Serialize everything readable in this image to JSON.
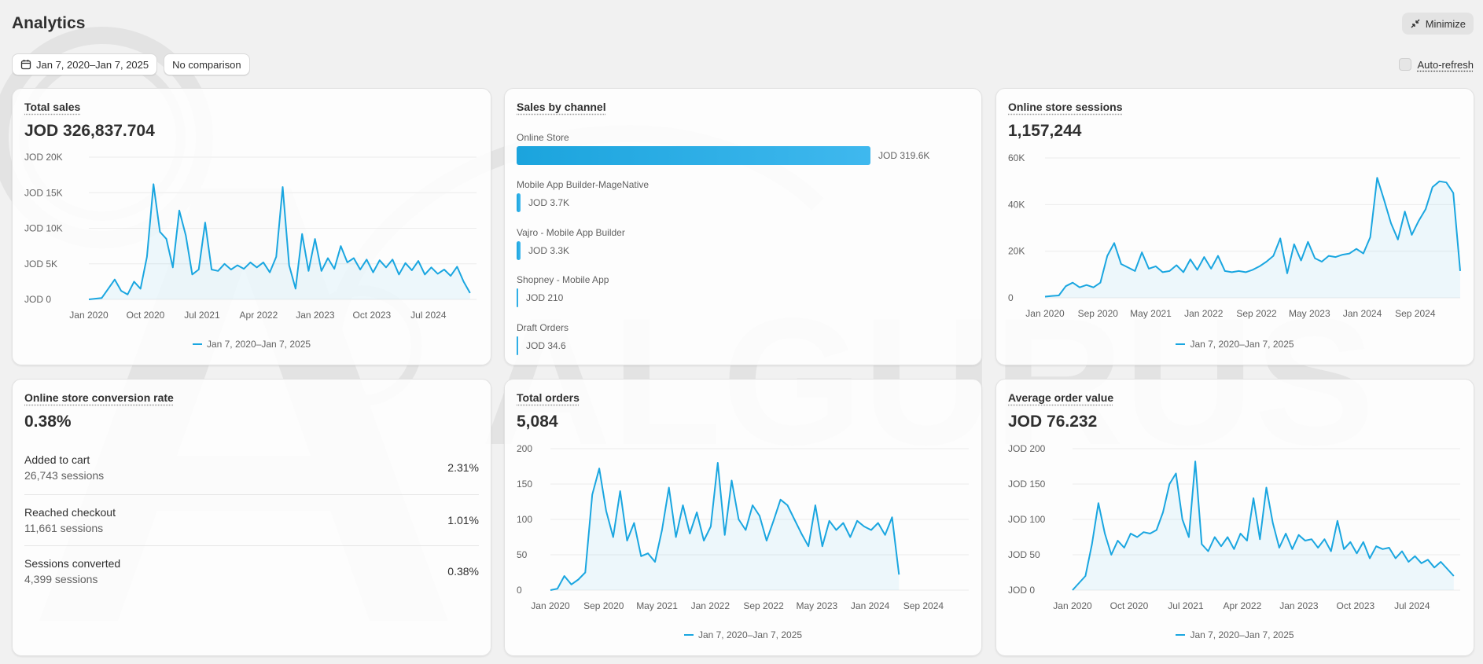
{
  "header": {
    "title": "Analytics",
    "minimize_label": "Minimize"
  },
  "toolbar": {
    "date_range": "Jan 7, 2020–Jan 7, 2025",
    "comparison": "No comparison",
    "auto_refresh_label": "Auto-refresh"
  },
  "colors": {
    "line": "#1aa6e0",
    "accent_bar": "#1ba4dd",
    "background": "#f1f1f1"
  },
  "watermark": {
    "text": "ALGURUS"
  },
  "cards": {
    "total_sales": {
      "title": "Total sales",
      "value": "JOD 326,837.704",
      "legend": "Jan 7, 2020–Jan 7, 2025"
    },
    "sales_by_channel": {
      "title": "Sales by channel",
      "channels": [
        {
          "name": "Online Store",
          "value_label": "JOD 319.6K",
          "value": 319600
        },
        {
          "name": "Mobile App Builder-MageNative",
          "value_label": "JOD 3.7K",
          "value": 3700
        },
        {
          "name": "Vajro - Mobile App Builder",
          "value_label": "JOD 3.3K",
          "value": 3300
        },
        {
          "name": "Shopney - Mobile App",
          "value_label": "JOD 210",
          "value": 210
        },
        {
          "name": "Draft Orders",
          "value_label": "JOD 34.6",
          "value": 34.6
        }
      ]
    },
    "sessions": {
      "title": "Online store sessions",
      "value": "1,157,244",
      "legend": "Jan 7, 2020–Jan 7, 2025"
    },
    "conversion": {
      "title": "Online store conversion rate",
      "value": "0.38%",
      "rows": [
        {
          "label": "Added to cart",
          "sessions": "26,743 sessions",
          "pct": "2.31%"
        },
        {
          "label": "Reached checkout",
          "sessions": "11,661 sessions",
          "pct": "1.01%"
        },
        {
          "label": "Sessions converted",
          "sessions": "4,399 sessions",
          "pct": "0.38%"
        }
      ]
    },
    "total_orders": {
      "title": "Total orders",
      "value": "5,084",
      "legend": "Jan 7, 2020–Jan 7, 2025"
    },
    "aov": {
      "title": "Average order value",
      "value": "JOD 76.232",
      "legend": "Jan 7, 2020–Jan 7, 2025"
    }
  },
  "chart_data": [
    {
      "id": "total_sales",
      "type": "line",
      "grid": true,
      "legend_placement": "bottom-center",
      "series_name": "Jan 7, 2020–Jan 7, 2025",
      "x_tick_labels": [
        "Jan 2020",
        "Oct 2020",
        "Jul 2021",
        "Apr 2022",
        "Jan 2023",
        "Oct 2023",
        "Jul 2024"
      ],
      "y_tick_labels": [
        "JOD 0",
        "JOD 5K",
        "JOD 10K",
        "JOD 15K",
        "JOD 20K"
      ],
      "ylim": [
        0,
        20000
      ],
      "xlim": [
        0,
        60
      ],
      "points": [
        [
          0,
          0
        ],
        [
          2,
          200
        ],
        [
          3,
          1500
        ],
        [
          4,
          2800
        ],
        [
          5,
          1200
        ],
        [
          6,
          700
        ],
        [
          7,
          2500
        ],
        [
          8,
          1500
        ],
        [
          9,
          6000
        ],
        [
          10,
          16200
        ],
        [
          11,
          9500
        ],
        [
          12,
          8500
        ],
        [
          13,
          4500
        ],
        [
          14,
          12500
        ],
        [
          15,
          9000
        ],
        [
          16,
          3500
        ],
        [
          17,
          4200
        ],
        [
          18,
          10800
        ],
        [
          19,
          4200
        ],
        [
          20,
          4000
        ],
        [
          21,
          5000
        ],
        [
          22,
          4200
        ],
        [
          23,
          4800
        ],
        [
          24,
          4300
        ],
        [
          25,
          5200
        ],
        [
          26,
          4500
        ],
        [
          27,
          5200
        ],
        [
          28,
          3800
        ],
        [
          29,
          6000
        ],
        [
          30,
          15800
        ],
        [
          31,
          4800
        ],
        [
          32,
          1500
        ],
        [
          33,
          9200
        ],
        [
          34,
          4000
        ],
        [
          35,
          8500
        ],
        [
          36,
          4000
        ],
        [
          37,
          5800
        ],
        [
          38,
          4300
        ],
        [
          39,
          7500
        ],
        [
          40,
          5200
        ],
        [
          41,
          5800
        ],
        [
          42,
          4200
        ],
        [
          43,
          5600
        ],
        [
          44,
          3800
        ],
        [
          45,
          5500
        ],
        [
          46,
          4500
        ],
        [
          47,
          5600
        ],
        [
          48,
          3500
        ],
        [
          49,
          5100
        ],
        [
          50,
          4100
        ],
        [
          51,
          5400
        ],
        [
          52,
          3500
        ],
        [
          53,
          4500
        ],
        [
          54,
          3600
        ],
        [
          55,
          4200
        ],
        [
          56,
          3300
        ],
        [
          57,
          4600
        ],
        [
          58,
          2500
        ],
        [
          59,
          900
        ]
      ]
    },
    {
      "id": "sales_by_channel",
      "type": "bar",
      "orientation": "horizontal",
      "categories": [
        "Online Store",
        "Mobile App Builder-MageNative",
        "Vajro - Mobile App Builder",
        "Shopney - Mobile App",
        "Draft Orders"
      ],
      "values": [
        319600,
        3700,
        3300,
        210,
        34.6
      ]
    },
    {
      "id": "sessions",
      "type": "line",
      "grid": true,
      "legend_placement": "bottom-center",
      "series_name": "Jan 7, 2020–Jan 7, 2025",
      "x_tick_labels": [
        "Jan 2020",
        "Sep 2020",
        "May 2021",
        "Jan 2022",
        "Sep 2022",
        "May 2023",
        "Jan 2024",
        "Sep 2024"
      ],
      "y_tick_labels": [
        "0",
        "20K",
        "40K",
        "60K"
      ],
      "ylim": [
        0,
        60000
      ],
      "xlim": [
        0,
        60
      ],
      "points": [
        [
          0,
          500
        ],
        [
          1,
          800
        ],
        [
          2,
          1000
        ],
        [
          3,
          5000
        ],
        [
          4,
          6500
        ],
        [
          5,
          4500
        ],
        [
          6,
          5500
        ],
        [
          7,
          4500
        ],
        [
          8,
          6500
        ],
        [
          9,
          18000
        ],
        [
          10,
          23500
        ],
        [
          11,
          14500
        ],
        [
          12,
          13000
        ],
        [
          13,
          11500
        ],
        [
          14,
          19500
        ],
        [
          15,
          12500
        ],
        [
          16,
          13500
        ],
        [
          17,
          11000
        ],
        [
          18,
          11500
        ],
        [
          19,
          14000
        ],
        [
          20,
          11000
        ],
        [
          21,
          16500
        ],
        [
          22,
          12000
        ],
        [
          23,
          17500
        ],
        [
          24,
          12500
        ],
        [
          25,
          18000
        ],
        [
          26,
          11500
        ],
        [
          27,
          11000
        ],
        [
          28,
          11500
        ],
        [
          29,
          11000
        ],
        [
          30,
          12000
        ],
        [
          31,
          13500
        ],
        [
          32,
          15500
        ],
        [
          33,
          18000
        ],
        [
          34,
          25500
        ],
        [
          35,
          10500
        ],
        [
          36,
          23000
        ],
        [
          37,
          16000
        ],
        [
          38,
          24000
        ],
        [
          39,
          17000
        ],
        [
          40,
          15500
        ],
        [
          41,
          18000
        ],
        [
          42,
          17500
        ],
        [
          43,
          18500
        ],
        [
          44,
          19000
        ],
        [
          45,
          21000
        ],
        [
          46,
          19000
        ],
        [
          47,
          26000
        ],
        [
          48,
          51500
        ],
        [
          49,
          42000
        ],
        [
          50,
          32000
        ],
        [
          51,
          25000
        ],
        [
          52,
          37000
        ],
        [
          53,
          27000
        ],
        [
          54,
          33000
        ],
        [
          55,
          38000
        ],
        [
          56,
          47500
        ],
        [
          57,
          50000
        ],
        [
          58,
          49500
        ],
        [
          59,
          45000
        ],
        [
          60,
          11500
        ]
      ]
    },
    {
      "id": "total_orders",
      "type": "line",
      "grid": true,
      "legend_placement": "bottom-center",
      "series_name": "Jan 7, 2020–Jan 7, 2025",
      "x_tick_labels": [
        "Jan 2020",
        "Sep 2020",
        "May 2021",
        "Jan 2022",
        "Sep 2022",
        "May 2023",
        "Jan 2024",
        "Sep 2024"
      ],
      "y_tick_labels": [
        "0",
        "50",
        "100",
        "150",
        "200"
      ],
      "ylim": [
        0,
        200
      ],
      "xlim": [
        0,
        60
      ],
      "points": [
        [
          0,
          0
        ],
        [
          1,
          2
        ],
        [
          2,
          20
        ],
        [
          3,
          8
        ],
        [
          4,
          15
        ],
        [
          5,
          25
        ],
        [
          6,
          135
        ],
        [
          7,
          172
        ],
        [
          8,
          112
        ],
        [
          9,
          75
        ],
        [
          10,
          140
        ],
        [
          11,
          70
        ],
        [
          12,
          95
        ],
        [
          13,
          48
        ],
        [
          14,
          52
        ],
        [
          15,
          40
        ],
        [
          16,
          85
        ],
        [
          17,
          145
        ],
        [
          18,
          75
        ],
        [
          19,
          120
        ],
        [
          20,
          80
        ],
        [
          21,
          110
        ],
        [
          22,
          70
        ],
        [
          23,
          90
        ],
        [
          24,
          180
        ],
        [
          25,
          78
        ],
        [
          26,
          155
        ],
        [
          27,
          100
        ],
        [
          28,
          85
        ],
        [
          29,
          120
        ],
        [
          30,
          105
        ],
        [
          31,
          70
        ],
        [
          32,
          98
        ],
        [
          33,
          128
        ],
        [
          34,
          120
        ],
        [
          35,
          100
        ],
        [
          36,
          80
        ],
        [
          37,
          62
        ],
        [
          38,
          120
        ],
        [
          39,
          62
        ],
        [
          40,
          98
        ],
        [
          41,
          85
        ],
        [
          42,
          95
        ],
        [
          43,
          75
        ],
        [
          44,
          98
        ],
        [
          45,
          90
        ],
        [
          46,
          85
        ],
        [
          47,
          95
        ],
        [
          48,
          78
        ],
        [
          49,
          103
        ],
        [
          50,
          22
        ]
      ]
    },
    {
      "id": "aov",
      "type": "line",
      "grid": true,
      "legend_placement": "bottom-center",
      "series_name": "Jan 7, 2020–Jan 7, 2025",
      "x_tick_labels": [
        "Jan 2020",
        "Oct 2020",
        "Jul 2021",
        "Apr 2022",
        "Jan 2023",
        "Oct 2023",
        "Jul 2024"
      ],
      "y_tick_labels": [
        "JOD 0",
        "JOD 50",
        "JOD 100",
        "JOD 150",
        "JOD 200"
      ],
      "ylim": [
        0,
        200
      ],
      "xlim": [
        0,
        60
      ],
      "points": [
        [
          0,
          0
        ],
        [
          2,
          20
        ],
        [
          3,
          65
        ],
        [
          4,
          123
        ],
        [
          5,
          80
        ],
        [
          6,
          50
        ],
        [
          7,
          70
        ],
        [
          8,
          60
        ],
        [
          9,
          80
        ],
        [
          10,
          75
        ],
        [
          11,
          82
        ],
        [
          12,
          80
        ],
        [
          13,
          85
        ],
        [
          14,
          110
        ],
        [
          15,
          150
        ],
        [
          16,
          165
        ],
        [
          17,
          100
        ],
        [
          18,
          75
        ],
        [
          19,
          182
        ],
        [
          20,
          65
        ],
        [
          21,
          55
        ],
        [
          22,
          75
        ],
        [
          23,
          62
        ],
        [
          24,
          75
        ],
        [
          25,
          58
        ],
        [
          26,
          80
        ],
        [
          27,
          70
        ],
        [
          28,
          130
        ],
        [
          29,
          72
        ],
        [
          30,
          145
        ],
        [
          31,
          95
        ],
        [
          32,
          60
        ],
        [
          33,
          80
        ],
        [
          34,
          58
        ],
        [
          35,
          78
        ],
        [
          36,
          70
        ],
        [
          37,
          72
        ],
        [
          38,
          60
        ],
        [
          39,
          72
        ],
        [
          40,
          55
        ],
        [
          41,
          98
        ],
        [
          42,
          58
        ],
        [
          43,
          68
        ],
        [
          44,
          52
        ],
        [
          45,
          68
        ],
        [
          46,
          45
        ],
        [
          47,
          62
        ],
        [
          48,
          58
        ],
        [
          49,
          60
        ],
        [
          50,
          45
        ],
        [
          51,
          55
        ],
        [
          52,
          40
        ],
        [
          53,
          48
        ],
        [
          54,
          38
        ],
        [
          55,
          43
        ],
        [
          56,
          32
        ],
        [
          57,
          40
        ],
        [
          58,
          30
        ],
        [
          59,
          20
        ]
      ]
    }
  ]
}
